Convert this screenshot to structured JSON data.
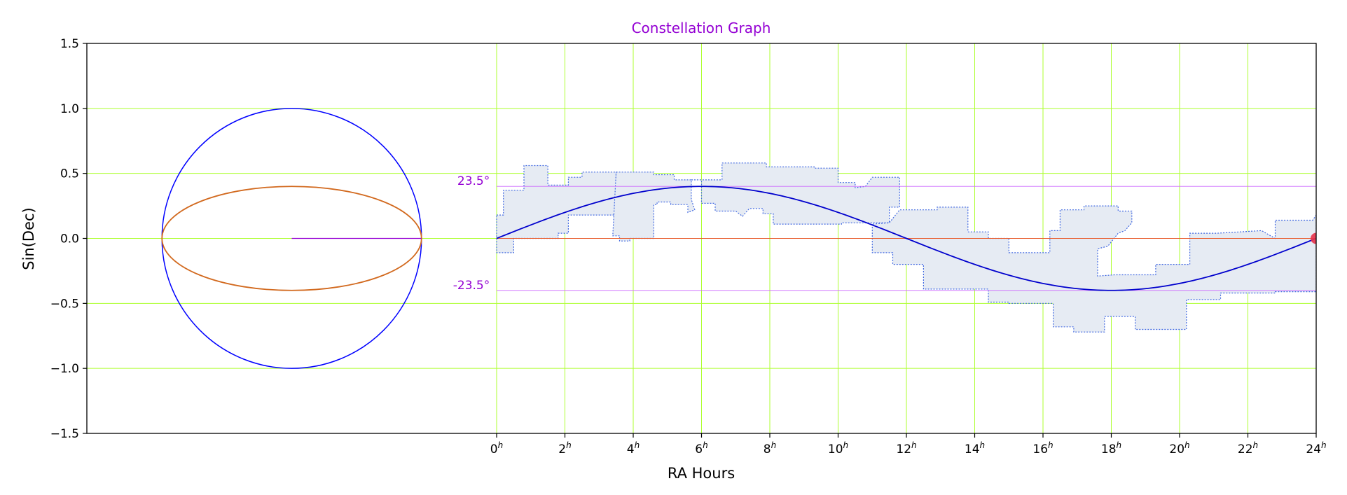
{
  "chart_data": {
    "type": "line",
    "title": "Constellation Graph",
    "xlabel": "RA Hours",
    "ylabel": "Sin(Dec)",
    "xlim": [
      -12,
      24
    ],
    "ylim": [
      -1.5,
      1.5
    ],
    "grid": true,
    "y_ticks": [
      {
        "value": 1.5,
        "label": "1.5"
      },
      {
        "value": 1.0,
        "label": "1.0"
      },
      {
        "value": 0.5,
        "label": "0.5"
      },
      {
        "value": 0.0,
        "label": "0.0"
      },
      {
        "value": -0.5,
        "label": "−0.5"
      },
      {
        "value": -1.0,
        "label": "−1.0"
      },
      {
        "value": -1.5,
        "label": "−1.5"
      }
    ],
    "x_ticks": [
      {
        "value": 0,
        "base": "0",
        "sup": "h"
      },
      {
        "value": 2,
        "base": "2",
        "sup": "h"
      },
      {
        "value": 4,
        "base": "4",
        "sup": "h"
      },
      {
        "value": 6,
        "base": "6",
        "sup": "h"
      },
      {
        "value": 8,
        "base": "8",
        "sup": "h"
      },
      {
        "value": 10,
        "base": "10",
        "sup": "h"
      },
      {
        "value": 12,
        "base": "12",
        "sup": "h"
      },
      {
        "value": 14,
        "base": "14",
        "sup": "h"
      },
      {
        "value": 16,
        "base": "16",
        "sup": "h"
      },
      {
        "value": 18,
        "base": "18",
        "sup": "h"
      },
      {
        "value": 20,
        "base": "20",
        "sup": "h"
      },
      {
        "value": 22,
        "base": "22",
        "sup": "h"
      },
      {
        "value": 24,
        "base": "24",
        "sup": "h"
      }
    ],
    "annotations": [
      {
        "text": "23.5°",
        "x": -0.2,
        "y": 0.4
      },
      {
        "text": "-23.5°",
        "x": -0.2,
        "y": -0.4
      }
    ],
    "circle": {
      "cx": -6,
      "cy": 0,
      "rx": 3.8,
      "ry": 1.0
    },
    "ellipse": {
      "cx": -6,
      "cy": 0,
      "rx": 3.8,
      "ry": 0.4
    },
    "radius_line": {
      "x": [
        -6,
        -2.2
      ],
      "y": [
        0,
        0
      ]
    },
    "equator": {
      "x": [
        0,
        24
      ],
      "y": [
        0,
        0
      ]
    },
    "tropic_north": {
      "x": [
        0,
        24
      ],
      "y": [
        0.4,
        0.4
      ]
    },
    "tropic_south": {
      "x": [
        0,
        24
      ],
      "y": [
        -0.4,
        -0.4
      ]
    },
    "ecliptic": {
      "amplitude": 0.4,
      "period_hours": 24,
      "x_start": 0,
      "x_end": 24
    },
    "marker": {
      "x": 24,
      "y": 0
    },
    "constellations": [
      [
        [
          0,
          0.18
        ],
        [
          0.2,
          0.18
        ],
        [
          0.2,
          0.37
        ],
        [
          0.8,
          0.37
        ],
        [
          0.8,
          0.56
        ],
        [
          1.5,
          0.56
        ],
        [
          1.5,
          0.41
        ],
        [
          2.1,
          0.41
        ],
        [
          2.1,
          0.47
        ],
        [
          2.5,
          0.47
        ],
        [
          2.5,
          0.51
        ],
        [
          3.5,
          0.51
        ],
        [
          3.5,
          0.18
        ],
        [
          2.1,
          0.18
        ],
        [
          2.1,
          0.04
        ],
        [
          1.8,
          0.04
        ],
        [
          1.8,
          0.0
        ],
        [
          0.5,
          0.0
        ],
        [
          0.5,
          -0.11
        ],
        [
          0,
          -0.11
        ]
      ],
      [
        [
          3.5,
          0.51
        ],
        [
          4.6,
          0.51
        ],
        [
          4.6,
          0.49
        ],
        [
          5.2,
          0.49
        ],
        [
          5.2,
          0.45
        ],
        [
          5.7,
          0.45
        ],
        [
          5.7,
          0.3
        ],
        [
          5.8,
          0.22
        ],
        [
          5.6,
          0.2
        ],
        [
          5.6,
          0.26
        ],
        [
          5.1,
          0.26
        ],
        [
          5.1,
          0.28
        ],
        [
          4.7,
          0.28
        ],
        [
          4.7,
          0.26
        ],
        [
          4.6,
          0.26
        ],
        [
          4.6,
          0.0
        ],
        [
          3.9,
          0.0
        ],
        [
          3.9,
          -0.02
        ],
        [
          3.6,
          -0.02
        ],
        [
          3.6,
          0.02
        ],
        [
          3.4,
          0.02
        ]
      ],
      [
        [
          5.7,
          0.45
        ],
        [
          6.6,
          0.45
        ],
        [
          6.6,
          0.58
        ],
        [
          7.9,
          0.58
        ],
        [
          7.9,
          0.55
        ],
        [
          9.3,
          0.55
        ],
        [
          9.3,
          0.54
        ],
        [
          10.0,
          0.54
        ],
        [
          10.0,
          0.43
        ],
        [
          10.5,
          0.43
        ],
        [
          10.5,
          0.39
        ],
        [
          10.8,
          0.4
        ],
        [
          11.0,
          0.47
        ],
        [
          11.8,
          0.47
        ],
        [
          11.8,
          0.24
        ],
        [
          11.5,
          0.24
        ],
        [
          11.5,
          0.12
        ],
        [
          10.1,
          0.12
        ],
        [
          10.1,
          0.11
        ],
        [
          8.1,
          0.11
        ],
        [
          8.1,
          0.19
        ],
        [
          7.8,
          0.19
        ],
        [
          7.8,
          0.23
        ],
        [
          7.4,
          0.23
        ],
        [
          7.2,
          0.17
        ],
        [
          7.0,
          0.21
        ],
        [
          6.4,
          0.21
        ],
        [
          6.4,
          0.27
        ],
        [
          6.0,
          0.27
        ],
        [
          6.0,
          0.45
        ]
      ],
      [
        [
          11.0,
          0.11
        ],
        [
          11.0,
          -0.11
        ],
        [
          11.6,
          -0.11
        ],
        [
          11.6,
          -0.2
        ],
        [
          12.5,
          -0.2
        ],
        [
          12.5,
          -0.39
        ],
        [
          14.4,
          -0.39
        ],
        [
          14.4,
          -0.49
        ],
        [
          15.0,
          -0.49
        ],
        [
          15.0,
          -0.5
        ],
        [
          15.5,
          -0.5
        ],
        [
          15.5,
          -0.5
        ],
        [
          16.3,
          -0.5
        ],
        [
          16.3,
          -0.68
        ],
        [
          16.9,
          -0.68
        ],
        [
          16.9,
          -0.72
        ],
        [
          17.8,
          -0.72
        ],
        [
          17.8,
          -0.6
        ],
        [
          18.7,
          -0.6
        ],
        [
          18.7,
          -0.7
        ],
        [
          20.2,
          -0.7
        ],
        [
          20.2,
          -0.47
        ],
        [
          21.2,
          -0.47
        ],
        [
          21.2,
          -0.42
        ],
        [
          22.8,
          -0.42
        ],
        [
          22.8,
          -0.41
        ],
        [
          24,
          -0.41
        ],
        [
          24,
          0.18
        ],
        [
          23.9,
          0.14
        ],
        [
          22.8,
          0.14
        ],
        [
          22.8,
          0.0
        ],
        [
          22.4,
          0.06
        ],
        [
          21.1,
          0.04
        ],
        [
          20.3,
          0.04
        ],
        [
          20.3,
          -0.2
        ],
        [
          19.3,
          -0.2
        ],
        [
          19.3,
          -0.28
        ],
        [
          18.1,
          -0.28
        ],
        [
          17.6,
          -0.29
        ],
        [
          17.6,
          -0.08
        ],
        [
          17.9,
          -0.06
        ],
        [
          18.2,
          0.04
        ],
        [
          18.4,
          0.06
        ],
        [
          18.6,
          0.12
        ],
        [
          18.6,
          0.21
        ],
        [
          18.2,
          0.21
        ],
        [
          18.2,
          0.25
        ],
        [
          17.2,
          0.25
        ],
        [
          17.2,
          0.22
        ],
        [
          16.5,
          0.22
        ],
        [
          16.5,
          0.06
        ],
        [
          16.2,
          0.06
        ],
        [
          16.2,
          -0.11
        ],
        [
          15.0,
          -0.11
        ],
        [
          15.0,
          0.0
        ],
        [
          14.4,
          0.0
        ],
        [
          14.4,
          0.05
        ],
        [
          13.8,
          0.05
        ],
        [
          13.8,
          0.24
        ],
        [
          12.9,
          0.24
        ],
        [
          12.9,
          0.22
        ],
        [
          11.8,
          0.22
        ],
        [
          11.5,
          0.12
        ],
        [
          11.0,
          0.11
        ]
      ]
    ],
    "colors": {
      "title": "#9400d3",
      "grid": "#adff2f",
      "circle": "#0000ff",
      "ellipse": "#d2691e",
      "radius_line": "#9400d3",
      "equator": "#e85a2a",
      "tropics": "#cc66ff",
      "annotation": "#9400d3",
      "ecliptic": "#0000cd",
      "constellation_fill": "#e6ebf3",
      "constellation_stroke": "#4169e1",
      "marker": "#e8334a"
    }
  }
}
